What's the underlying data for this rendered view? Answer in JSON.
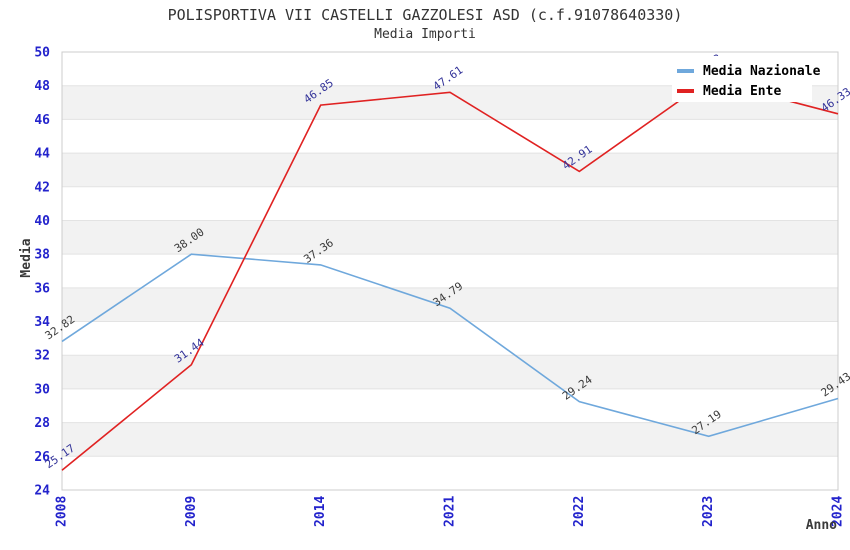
{
  "chart_data": {
    "type": "line",
    "title": "POLISPORTIVA VII CASTELLI GAZZOLESI ASD (c.f.91078640330)",
    "subtitle": "Media Importi",
    "xlabel": "Anno",
    "ylabel": "Media",
    "categories": [
      "2008",
      "2009",
      "2014",
      "2021",
      "2022",
      "2023",
      "2024"
    ],
    "series": [
      {
        "name": "Media Nazionale",
        "color": "#6fa8dc",
        "label_color": "#3a3a3a",
        "values": [
          32.82,
          38.0,
          37.36,
          34.79,
          29.24,
          27.19,
          29.43
        ]
      },
      {
        "name": "Media Ente",
        "color": "#e02222",
        "label_color": "#333399",
        "values": [
          25.17,
          31.44,
          46.85,
          47.61,
          42.91,
          48.33,
          46.33
        ]
      }
    ],
    "ylim": [
      24,
      50
    ],
    "ytick_step": 2,
    "x_axis_spacing": "categorical",
    "grid": "horizontal-bands-and-gridlines",
    "legend_position": "top-right-inside",
    "point_label_format": "2-decimals",
    "point_label_rotation_deg": -35,
    "colors": {
      "axis_tick_labels": "#2323cc",
      "axis_titles": "#3a3a3a",
      "title_text": "#333333",
      "band_fill": "#f2f2f2",
      "gridline": "#e3e3e3",
      "plot_border": "#cccccc",
      "legend_background": "#ffffff",
      "legend_text": "#000000",
      "background": "#ffffff"
    }
  }
}
